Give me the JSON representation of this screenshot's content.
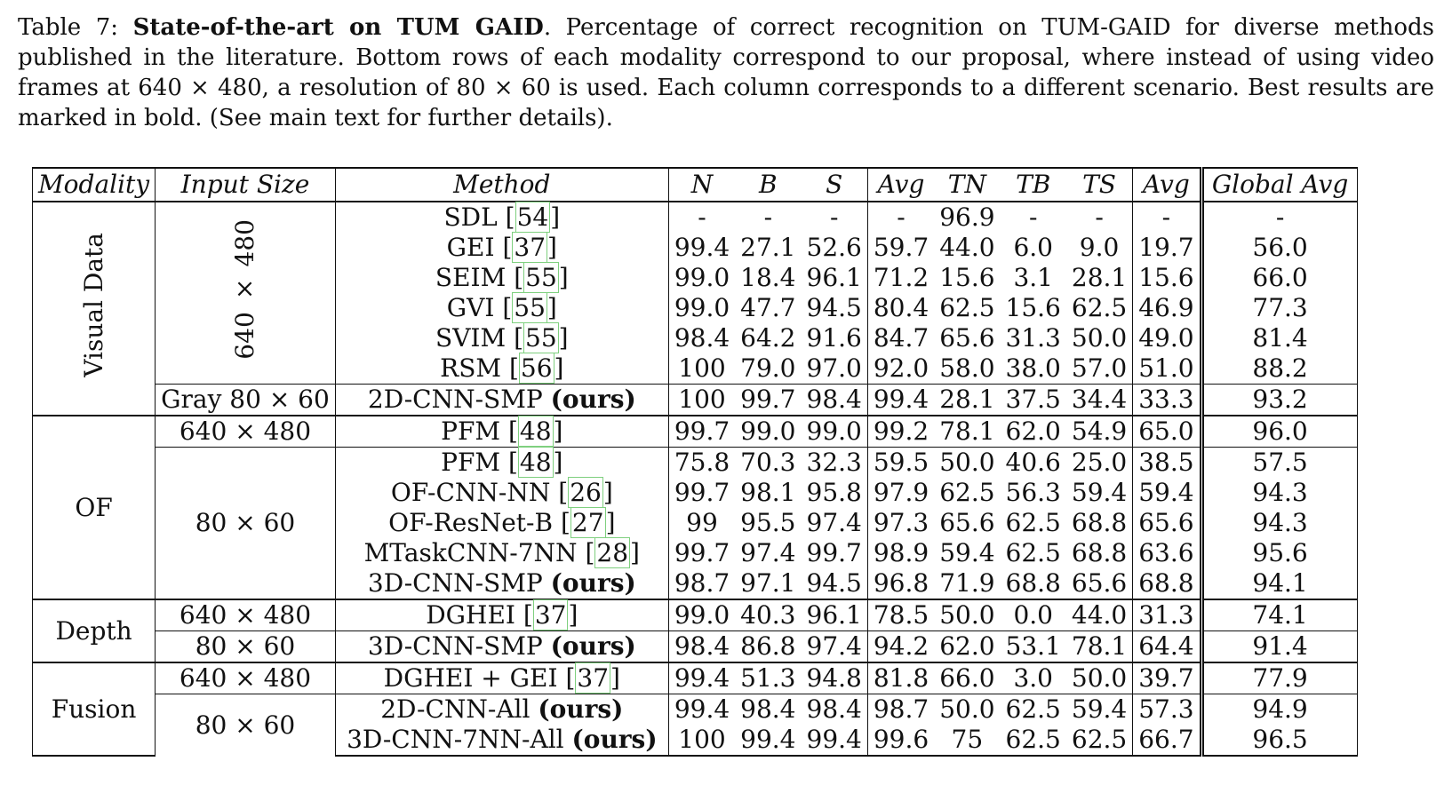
{
  "caption": {
    "label": "Table 7:",
    "title": "State-of-the-art on TUM GAID",
    "text": ". Percentage of correct recognition on TUM-GAID for diverse methods published in the literature. Bottom rows of each modality correspond to our proposal, where instead of using video frames at 640 × 480, a resolution of 80 × 60 is used. Each column corresponds to a different scenario. Best results are marked in bold. (See main text for further details)."
  },
  "headers": [
    "Modality",
    "Input Size",
    "Method",
    "N",
    "B",
    "S",
    "Avg",
    "TN",
    "TB",
    "TS",
    "Avg",
    "Global Avg"
  ],
  "groups": {
    "visual": "Visual Data",
    "of": "OF",
    "depth": "Depth",
    "fusion": "Fusion"
  },
  "sizes": {
    "s640": "640 × 480",
    "gray": "Gray 80 × 60",
    "s80": "80 × 60"
  },
  "ours": "(ours)",
  "rows": [
    {
      "method": "SDL",
      "ref": "54",
      "v": [
        "-",
        "-",
        "-",
        "-",
        "96.9",
        "-",
        "-",
        "-",
        "-"
      ]
    },
    {
      "method": "GEI",
      "ref": "37",
      "v": [
        "99.4",
        "27.1",
        "52.6",
        "59.7",
        "44.0",
        "6.0",
        "9.0",
        "19.7",
        "56.0"
      ]
    },
    {
      "method": "SEIM",
      "ref": "55",
      "v": [
        "99.0",
        "18.4",
        "96.1",
        "71.2",
        "15.6",
        "3.1",
        "28.1",
        "15.6",
        "66.0"
      ]
    },
    {
      "method": "GVI",
      "ref": "55",
      "v": [
        "99.0",
        "47.7",
        "94.5",
        "80.4",
        "62.5",
        "15.6",
        "62.5",
        "46.9",
        "77.3"
      ]
    },
    {
      "method": "SVIM",
      "ref": "55",
      "v": [
        "98.4",
        "64.2",
        "91.6",
        "84.7",
        "65.6",
        "31.3",
        "50.0",
        "49.0",
        "81.4"
      ]
    },
    {
      "method": "RSM",
      "ref": "56",
      "v": [
        "100",
        "79.0",
        "97.0",
        "92.0",
        "58.0",
        "38.0",
        "57.0",
        "51.0",
        "88.2"
      ]
    },
    {
      "method": "2D-CNN-SMP",
      "v": [
        "100",
        "99.7",
        "98.4",
        "99.4",
        "28.1",
        "37.5",
        "34.4",
        "33.3",
        "93.2"
      ]
    },
    {
      "method": "PFM",
      "ref": "48",
      "v": [
        "99.7",
        "99.0",
        "99.0",
        "99.2",
        "78.1",
        "62.0",
        "54.9",
        "65.0",
        "96.0"
      ]
    },
    {
      "method": "PFM",
      "ref": "48",
      "v": [
        "75.8",
        "70.3",
        "32.3",
        "59.5",
        "50.0",
        "40.6",
        "25.0",
        "38.5",
        "57.5"
      ]
    },
    {
      "method": "OF-CNN-NN",
      "ref": "26",
      "v": [
        "99.7",
        "98.1",
        "95.8",
        "97.9",
        "62.5",
        "56.3",
        "59.4",
        "59.4",
        "94.3"
      ]
    },
    {
      "method": "OF-ResNet-B",
      "ref": "27",
      "v": [
        "99",
        "95.5",
        "97.4",
        "97.3",
        "65.6",
        "62.5",
        "68.8",
        "65.6",
        "94.3"
      ]
    },
    {
      "method": "MTaskCNN-7NN",
      "ref": "28",
      "v": [
        "99.7",
        "97.4",
        "99.7",
        "98.9",
        "59.4",
        "62.5",
        "68.8",
        "63.6",
        "95.6"
      ]
    },
    {
      "method": "3D-CNN-SMP",
      "v": [
        "98.7",
        "97.1",
        "94.5",
        "96.8",
        "71.9",
        "68.8",
        "65.6",
        "68.8",
        "94.1"
      ]
    },
    {
      "method": "DGHEI",
      "ref": "37",
      "v": [
        "99.0",
        "40.3",
        "96.1",
        "78.5",
        "50.0",
        "0.0",
        "44.0",
        "31.3",
        "74.1"
      ]
    },
    {
      "method": "3D-CNN-SMP",
      "v": [
        "98.4",
        "86.8",
        "97.4",
        "94.2",
        "62.0",
        "53.1",
        "78.1",
        "64.4",
        "91.4"
      ]
    },
    {
      "method": "DGHEI + GEI",
      "ref": "37",
      "v": [
        "99.4",
        "51.3",
        "94.8",
        "81.8",
        "66.0",
        "3.0",
        "50.0",
        "39.7",
        "77.9"
      ]
    },
    {
      "method": "2D-CNN-All",
      "v": [
        "99.4",
        "98.4",
        "98.4",
        "98.7",
        "50.0",
        "62.5",
        "59.4",
        "57.3",
        "94.9"
      ]
    },
    {
      "method": "3D-CNN-7NN-All",
      "v": [
        "100",
        "99.4",
        "99.4",
        "99.6",
        "75",
        "62.5",
        "62.5",
        "66.7",
        "96.5"
      ]
    }
  ]
}
